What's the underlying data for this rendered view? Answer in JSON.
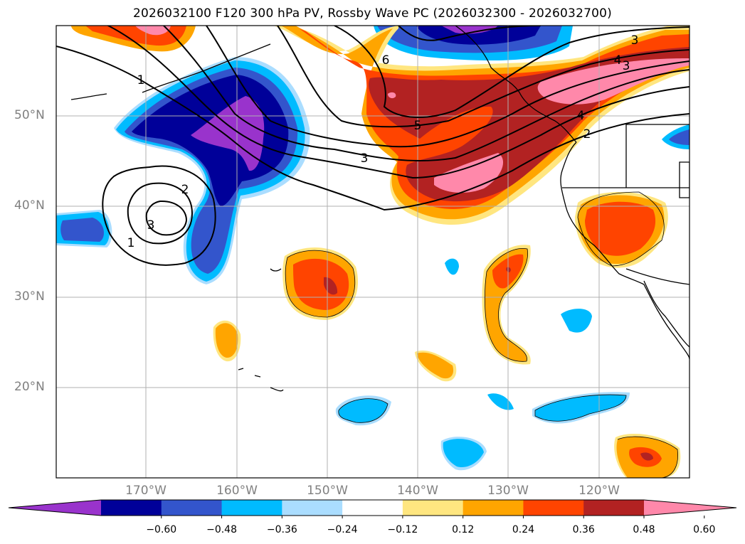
{
  "title": "2026032100 F120 300 hPa PV, Rossby Wave PC (2026032300 - 2026032700)",
  "map": {
    "lat_labels": [
      "50°N",
      "40°N",
      "30°N",
      "20°N"
    ],
    "lon_labels": [
      "170°W",
      "160°W",
      "150°W",
      "140°W",
      "130°W",
      "120°W"
    ],
    "contour_labels": [
      "1",
      "1",
      "2",
      "3",
      "3",
      "3",
      "3",
      "4",
      "4",
      "5",
      "6",
      "2"
    ]
  },
  "colorbar": {
    "ticks": [
      "−0.60",
      "−0.48",
      "−0.36",
      "−0.24",
      "−0.12",
      "0.12",
      "0.24",
      "0.36",
      "0.48",
      "0.60"
    ],
    "colors": [
      "#9933cc",
      "#000099",
      "#3355cc",
      "#00bbff",
      "#aaddff",
      "#ffffff",
      "#ffe680",
      "#ffa500",
      "#ff4400",
      "#b22222",
      "#ff88aa"
    ]
  }
}
